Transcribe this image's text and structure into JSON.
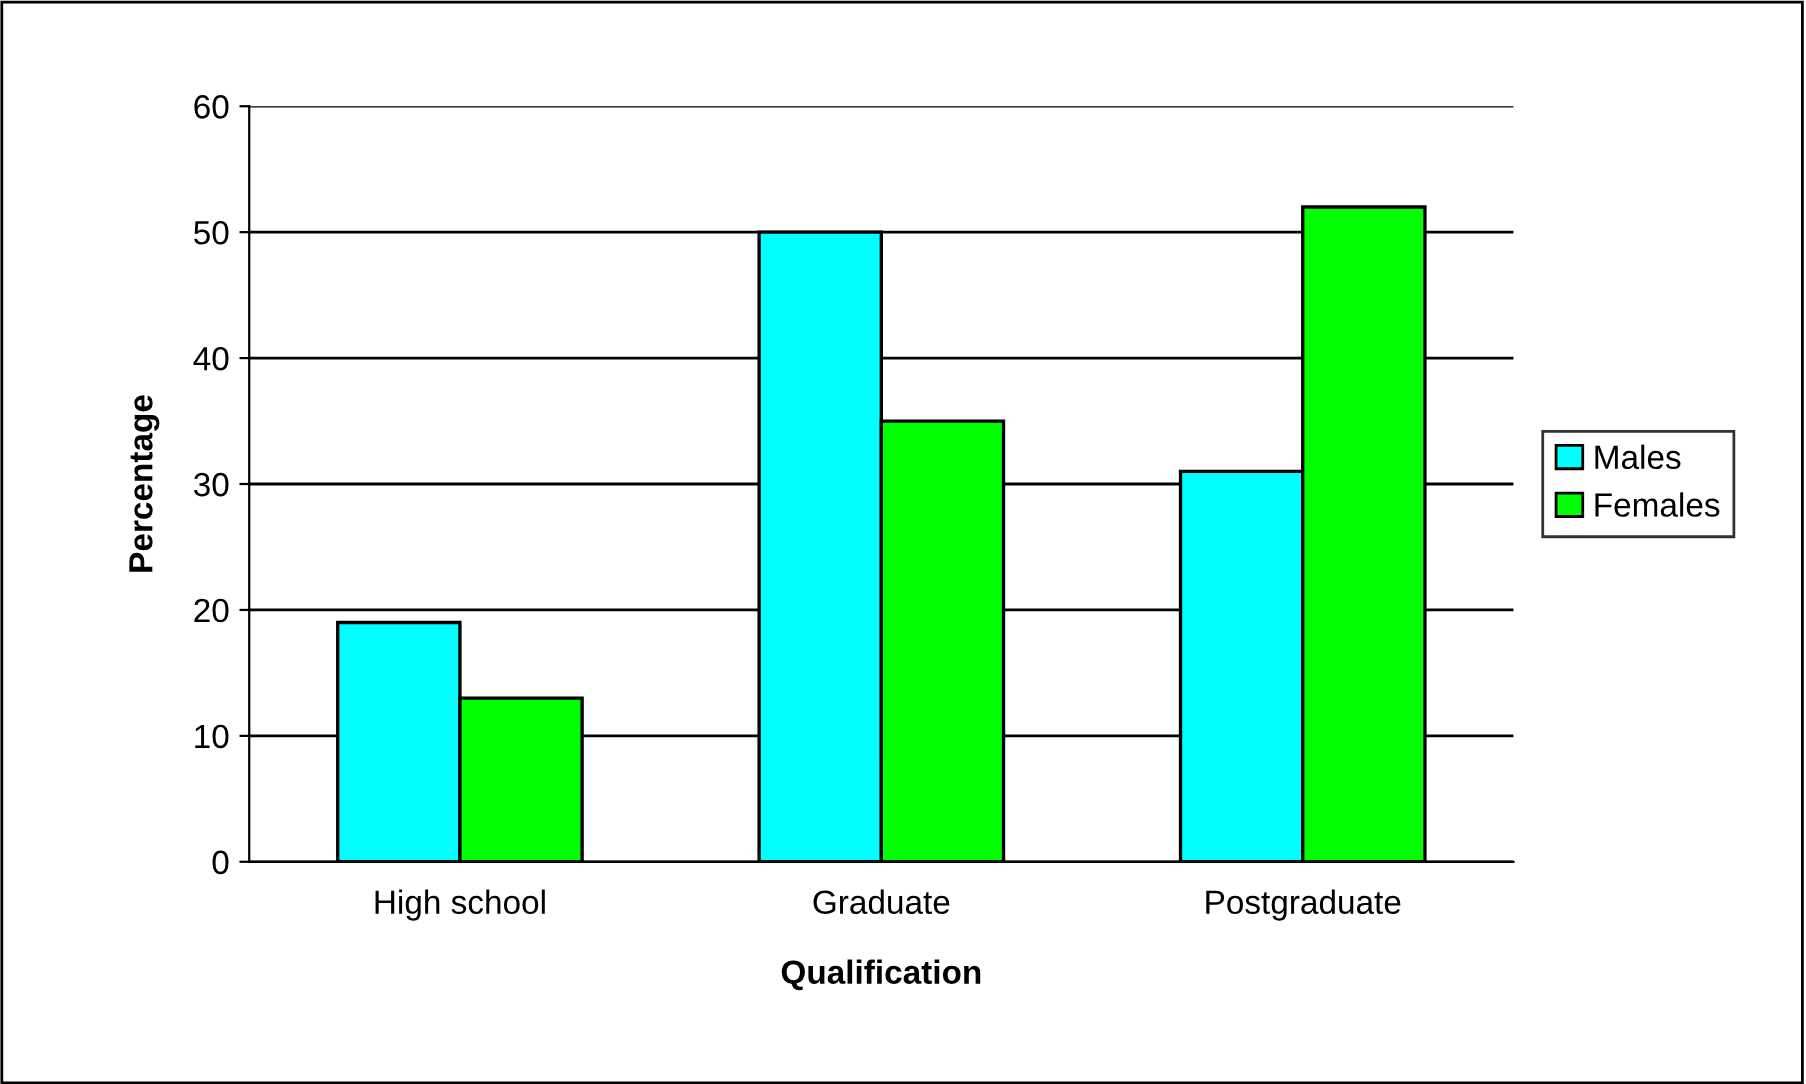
{
  "chart_data": {
    "type": "bar",
    "xlabel": "Qualification",
    "ylabel": "Percentage",
    "categories": [
      "High school",
      "Graduate",
      "Postgraduate"
    ],
    "series": [
      {
        "name": "Males",
        "color": "#00ffff",
        "values": [
          19,
          50,
          31
        ]
      },
      {
        "name": "Females",
        "color": "#00ff00",
        "values": [
          13,
          35,
          52
        ]
      }
    ],
    "ylim": [
      0,
      60
    ],
    "yticks": [
      0,
      10,
      20,
      30,
      40,
      50,
      60
    ],
    "grid": "y",
    "legend": "right"
  }
}
